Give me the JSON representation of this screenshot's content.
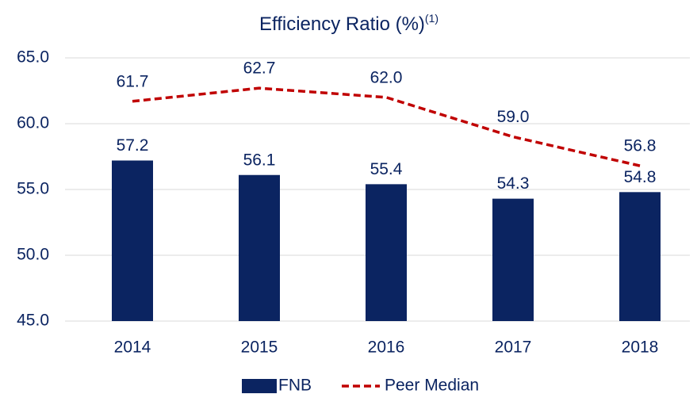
{
  "chart_data": {
    "type": "bar",
    "title": "Efficiency Ratio (%)",
    "title_note": "(1)",
    "categories": [
      "2014",
      "2015",
      "2016",
      "2017",
      "2018"
    ],
    "series": [
      {
        "name": "FNB",
        "type": "bar",
        "color": "#0b2461",
        "values": [
          57.2,
          56.1,
          55.4,
          54.3,
          54.8
        ],
        "value_labels": [
          "57.2",
          "56.1",
          "55.4",
          "54.3",
          "54.8"
        ]
      },
      {
        "name": "Peer Median",
        "type": "line",
        "color": "#c00000",
        "dashed": true,
        "values": [
          61.7,
          62.7,
          62.0,
          59.0,
          56.8
        ],
        "value_labels": [
          "61.7",
          "62.7",
          "62.0",
          "59.0",
          "56.8"
        ]
      }
    ],
    "ylim": [
      45,
      65
    ],
    "yticks": [
      {
        "value": 45,
        "label": "45.0"
      },
      {
        "value": 50,
        "label": "50.0"
      },
      {
        "value": 55,
        "label": "55.0"
      },
      {
        "value": 60,
        "label": "60.0"
      },
      {
        "value": 65,
        "label": "65.0"
      }
    ],
    "grid": true,
    "legend": "bottom"
  }
}
